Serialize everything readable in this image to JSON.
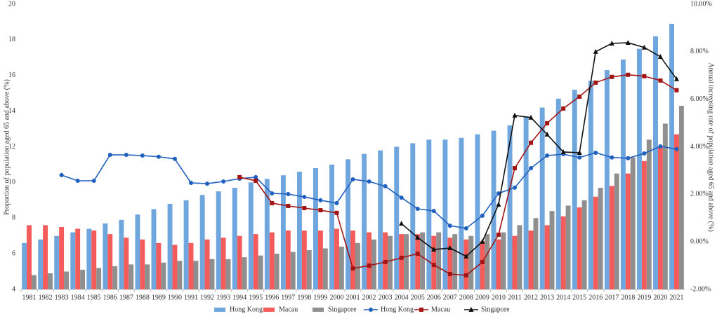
{
  "chart_data": {
    "type": "bar",
    "y_label": "Proportion of population aged 65 and above (%)",
    "y2_label": "Annual increasing rate of population aged 65 and above (%)",
    "categories": [
      "1981",
      "1982",
      "1983",
      "1984",
      "1985",
      "1986",
      "1987",
      "1988",
      "1989",
      "1990",
      "1991",
      "1992",
      "1993",
      "1994",
      "1995",
      "1996",
      "1997",
      "1998",
      "1999",
      "2000",
      "2001",
      "2002",
      "2003",
      "2004",
      "2005",
      "2006",
      "2007",
      "2008",
      "2009",
      "2010",
      "2011",
      "2012",
      "2013",
      "2014",
      "2015",
      "2016",
      "2017",
      "2018",
      "2019",
      "2020",
      "2021"
    ],
    "ylim": [
      4,
      20
    ],
    "yticks": [
      4,
      6,
      8,
      10,
      12,
      14,
      16,
      18,
      20
    ],
    "y2lim": [
      -2,
      10
    ],
    "y2ticks": [
      {
        "value": -2,
        "label": "-2.00%"
      },
      {
        "value": 0,
        "label": "0.00%"
      },
      {
        "value": 2,
        "label": "2.00%"
      },
      {
        "value": 4,
        "label": "4.00%"
      },
      {
        "value": 6,
        "label": "6.00%"
      },
      {
        "value": 8,
        "label": "8.00%"
      },
      {
        "value": 10,
        "label": "10.00%"
      }
    ],
    "grid": false,
    "legend": "bottom",
    "series": [
      {
        "name": "Hong Kong",
        "type": "bar",
        "color": "#6fa6dd",
        "values": [
          6.6,
          6.8,
          7.0,
          7.2,
          7.4,
          7.7,
          7.9,
          8.2,
          8.5,
          8.8,
          9.0,
          9.3,
          9.5,
          9.7,
          10.0,
          10.2,
          10.4,
          10.6,
          10.8,
          11.0,
          11.3,
          11.6,
          11.8,
          12.0,
          12.2,
          12.4,
          12.4,
          12.5,
          12.7,
          12.9,
          13.2,
          13.7,
          14.2,
          14.7,
          15.2,
          15.7,
          16.3,
          16.9,
          17.5,
          18.2,
          18.9
        ]
      },
      {
        "name": "Macau",
        "type": "bar",
        "color": "#f45b5b",
        "values": [
          7.6,
          7.6,
          7.5,
          7.4,
          7.3,
          7.1,
          6.9,
          6.8,
          6.6,
          6.5,
          6.6,
          6.8,
          6.9,
          7.0,
          7.1,
          7.2,
          7.3,
          7.3,
          7.3,
          7.4,
          7.3,
          7.2,
          7.2,
          7.1,
          7.1,
          7.0,
          6.9,
          6.8,
          6.7,
          6.8,
          7.0,
          7.3,
          7.6,
          8.1,
          8.6,
          9.2,
          9.8,
          10.5,
          11.2,
          12.0,
          12.7
        ]
      },
      {
        "name": "Singapore",
        "type": "bar",
        "color": "#8f8f8f",
        "values": [
          4.8,
          4.9,
          5.0,
          5.1,
          5.2,
          5.3,
          5.4,
          5.4,
          5.5,
          5.6,
          5.6,
          5.7,
          5.7,
          5.8,
          5.9,
          6.0,
          6.1,
          6.2,
          6.3,
          6.4,
          6.6,
          6.8,
          7.0,
          7.1,
          7.2,
          7.2,
          7.1,
          7.0,
          7.1,
          7.2,
          7.6,
          8.0,
          8.4,
          8.7,
          9.0,
          9.7,
          10.5,
          11.4,
          12.4,
          13.3,
          14.3
        ]
      },
      {
        "name": "Hong Kong",
        "type": "line",
        "axis": "y2",
        "color": "#1f5fbf",
        "marker": "circle",
        "values": [
          null,
          null,
          2.81,
          2.57,
          2.57,
          3.66,
          3.66,
          3.63,
          3.58,
          3.49,
          2.48,
          2.45,
          2.54,
          2.66,
          2.72,
          2.04,
          2.01,
          1.89,
          1.75,
          1.63,
          2.63,
          2.54,
          2.34,
          1.86,
          1.39,
          1.3,
          0.68,
          0.57,
          1.1,
          2.04,
          2.28,
          3.1,
          3.63,
          3.69,
          3.55,
          3.75,
          3.55,
          3.52,
          3.72,
          4.02,
          3.9
        ]
      },
      {
        "name": "Macau",
        "type": "line",
        "axis": "y2",
        "color": "#a31515",
        "marker": "square",
        "values": [
          null,
          null,
          null,
          null,
          null,
          null,
          null,
          null,
          null,
          null,
          null,
          null,
          null,
          2.72,
          2.57,
          1.63,
          1.51,
          1.42,
          1.33,
          1.22,
          -1.12,
          -1.0,
          -0.85,
          -0.67,
          -0.5,
          -0.97,
          -1.35,
          -1.41,
          -0.85,
          0.3,
          3.1,
          4.17,
          4.99,
          5.61,
          6.11,
          6.7,
          6.94,
          7.03,
          6.97,
          6.79,
          6.38
        ]
      },
      {
        "name": "Singapore",
        "type": "line",
        "axis": "y2",
        "color": "#111111",
        "marker": "triangle",
        "values": [
          null,
          null,
          null,
          null,
          null,
          null,
          null,
          null,
          null,
          null,
          null,
          null,
          null,
          null,
          null,
          null,
          null,
          null,
          null,
          null,
          null,
          null,
          null,
          0.77,
          0.18,
          -0.32,
          -0.26,
          -0.61,
          0.01,
          1.57,
          5.32,
          5.23,
          4.52,
          3.78,
          3.75,
          8.0,
          8.35,
          8.38,
          8.18,
          7.79,
          6.85
        ]
      }
    ]
  }
}
